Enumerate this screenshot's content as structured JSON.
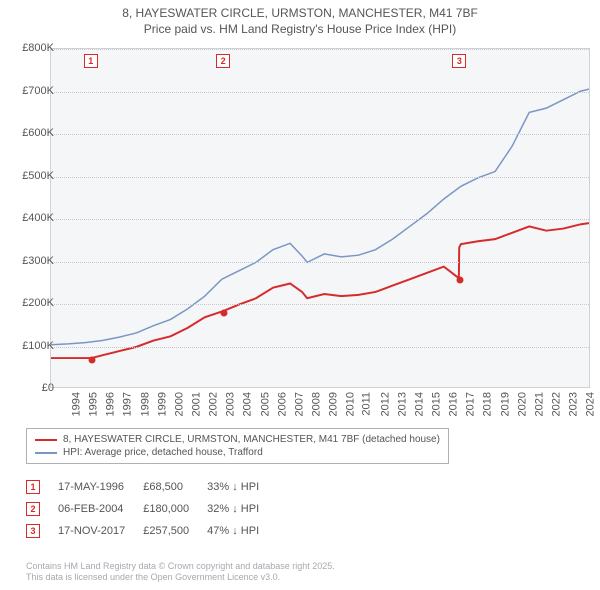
{
  "title_line1": "8, HAYESWATER CIRCLE, URMSTON, MANCHESTER, M41 7BF",
  "title_line2": "Price paid vs. HM Land Registry's House Price Index (HPI)",
  "chart": {
    "type": "line",
    "background_color": "#f5f6f8",
    "grid_color": "#c8c8d0",
    "border_color": "#d0d0d8",
    "x": {
      "min": 1994,
      "max": 2025.5,
      "ticks": [
        1994,
        1995,
        1996,
        1997,
        1998,
        1999,
        2000,
        2001,
        2002,
        2003,
        2004,
        2005,
        2006,
        2007,
        2008,
        2009,
        2010,
        2011,
        2012,
        2013,
        2014,
        2015,
        2016,
        2017,
        2018,
        2019,
        2020,
        2021,
        2022,
        2023,
        2024,
        2025
      ]
    },
    "y": {
      "min": 0,
      "max": 800000,
      "tick_step": 100000,
      "labels": [
        "£0",
        "£100K",
        "£200K",
        "£300K",
        "£400K",
        "£500K",
        "£600K",
        "£700K",
        "£800K"
      ]
    },
    "series": [
      {
        "name": "price_paid",
        "label": "8, HAYESWATER CIRCLE, URMSTON, MANCHESTER, M41 7BF (detached house)",
        "color": "#d62b2b",
        "line_width": 2,
        "points": [
          [
            1994,
            68500
          ],
          [
            1996.38,
            68500
          ],
          [
            1997,
            75000
          ],
          [
            1998,
            85000
          ],
          [
            1999,
            95000
          ],
          [
            2000,
            110000
          ],
          [
            2001,
            120000
          ],
          [
            2002,
            140000
          ],
          [
            2003,
            165000
          ],
          [
            2004.1,
            180000
          ],
          [
            2005,
            195000
          ],
          [
            2006,
            210000
          ],
          [
            2007,
            235000
          ],
          [
            2008,
            245000
          ],
          [
            2008.7,
            225000
          ],
          [
            2009,
            210000
          ],
          [
            2010,
            220000
          ],
          [
            2011,
            215000
          ],
          [
            2012,
            218000
          ],
          [
            2013,
            225000
          ],
          [
            2014,
            240000
          ],
          [
            2015,
            255000
          ],
          [
            2016,
            270000
          ],
          [
            2017,
            285000
          ],
          [
            2017.88,
            257500
          ],
          [
            2017.9,
            330000
          ],
          [
            2018,
            338000
          ],
          [
            2019,
            345000
          ],
          [
            2020,
            350000
          ],
          [
            2021,
            365000
          ],
          [
            2022,
            380000
          ],
          [
            2023,
            370000
          ],
          [
            2024,
            375000
          ],
          [
            2025,
            385000
          ],
          [
            2025.5,
            388000
          ]
        ]
      },
      {
        "name": "hpi",
        "label": "HPI: Average price, detached house, Trafford",
        "color": "#7a96c4",
        "line_width": 1.5,
        "points": [
          [
            1994,
            100000
          ],
          [
            1995,
            102000
          ],
          [
            1996,
            105000
          ],
          [
            1997,
            110000
          ],
          [
            1998,
            118000
          ],
          [
            1999,
            128000
          ],
          [
            2000,
            145000
          ],
          [
            2001,
            160000
          ],
          [
            2002,
            185000
          ],
          [
            2003,
            215000
          ],
          [
            2004,
            255000
          ],
          [
            2005,
            275000
          ],
          [
            2006,
            295000
          ],
          [
            2007,
            325000
          ],
          [
            2008,
            340000
          ],
          [
            2008.7,
            310000
          ],
          [
            2009,
            295000
          ],
          [
            2010,
            315000
          ],
          [
            2011,
            308000
          ],
          [
            2012,
            312000
          ],
          [
            2013,
            325000
          ],
          [
            2014,
            350000
          ],
          [
            2015,
            380000
          ],
          [
            2016,
            410000
          ],
          [
            2017,
            445000
          ],
          [
            2018,
            475000
          ],
          [
            2019,
            495000
          ],
          [
            2020,
            510000
          ],
          [
            2021,
            570000
          ],
          [
            2022,
            650000
          ],
          [
            2023,
            660000
          ],
          [
            2024,
            680000
          ],
          [
            2025,
            700000
          ],
          [
            2025.5,
            705000
          ]
        ]
      }
    ],
    "markers": [
      {
        "n": "1",
        "x": 1996.38,
        "y": 68500
      },
      {
        "n": "2",
        "x": 2004.1,
        "y": 180000
      },
      {
        "n": "3",
        "x": 2017.88,
        "y": 257500
      }
    ]
  },
  "legend": {
    "items": [
      {
        "color": "#d62b2b",
        "label": "8, HAYESWATER CIRCLE, URMSTON, MANCHESTER, M41 7BF (detached house)"
      },
      {
        "color": "#7a96c4",
        "label": "HPI: Average price, detached house, Trafford"
      }
    ]
  },
  "transactions": [
    {
      "n": "1",
      "date": "17-MAY-1996",
      "price": "£68,500",
      "delta": "33% ↓ HPI"
    },
    {
      "n": "2",
      "date": "06-FEB-2004",
      "price": "£180,000",
      "delta": "32% ↓ HPI"
    },
    {
      "n": "3",
      "date": "17-NOV-2017",
      "price": "£257,500",
      "delta": "47% ↓ HPI"
    }
  ],
  "attribution_line1": "Contains HM Land Registry data © Crown copyright and database right 2025.",
  "attribution_line2": "This data is licensed under the Open Government Licence v3.0."
}
